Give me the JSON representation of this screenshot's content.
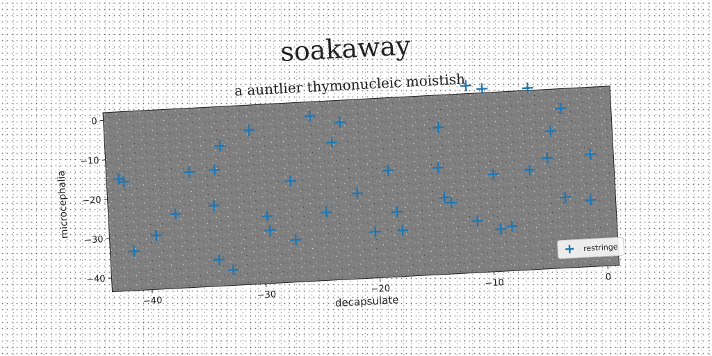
{
  "chart_data": {
    "type": "scatter",
    "title": "soakaway",
    "subtitle": "a auntlier thymonucleic moistish",
    "xlabel": "decapsulate",
    "ylabel": "microcephalia",
    "xlim": [
      -43.5,
      1
    ],
    "ylim": [
      -43.5,
      2
    ],
    "xticks": [
      -40,
      -30,
      -20,
      -10,
      0
    ],
    "yticks": [
      0,
      -10,
      -20,
      -30,
      -40
    ],
    "grid": false,
    "legend_position": "bottom-right",
    "series": [
      {
        "name": "restringe",
        "color": "#1f77b4",
        "marker": "plus",
        "points": [
          [
            -42.4,
            -15.0
          ],
          [
            -42.0,
            -15.8
          ],
          [
            -41.4,
            -33.5
          ],
          [
            -39.4,
            -29.8
          ],
          [
            -37.6,
            -24.6
          ],
          [
            -36.2,
            -14.2
          ],
          [
            -34.2,
            -23.0
          ],
          [
            -34.0,
            -14.0
          ],
          [
            -34.0,
            -36.8
          ],
          [
            -33.4,
            -8.0
          ],
          [
            -32.8,
            -39.6
          ],
          [
            -30.8,
            -4.4
          ],
          [
            -29.6,
            -26.4
          ],
          [
            -29.4,
            -30.0
          ],
          [
            -27.4,
            -17.8
          ],
          [
            -27.2,
            -32.8
          ],
          [
            -25.4,
            -1.6
          ],
          [
            -24.4,
            -26.2
          ],
          [
            -23.6,
            -8.6
          ],
          [
            -22.8,
            -3.6
          ],
          [
            -21.6,
            -21.8
          ],
          [
            -20.2,
            -31.8
          ],
          [
            -18.8,
            -16.4
          ],
          [
            -18.2,
            -27.0
          ],
          [
            -17.8,
            -31.8
          ],
          [
            -14.4,
            -16.4
          ],
          [
            -14.2,
            -6.2
          ],
          [
            -14.0,
            -24.0
          ],
          [
            -13.4,
            -25.4
          ],
          [
            -11.6,
            4.0
          ],
          [
            -11.2,
            -30.4
          ],
          [
            -10.2,
            3.0
          ],
          [
            -9.6,
            -18.8
          ],
          [
            -9.2,
            -32.8
          ],
          [
            -8.2,
            -32.2
          ],
          [
            -6.4,
            -18.2
          ],
          [
            -6.2,
            2.6
          ],
          [
            -4.8,
            -15.4
          ],
          [
            -4.4,
            -8.6
          ],
          [
            -3.4,
            -25.6
          ],
          [
            -3.4,
            -3.0
          ],
          [
            -1.0,
            -15.0
          ],
          [
            -1.2,
            -26.6
          ]
        ]
      }
    ]
  }
}
